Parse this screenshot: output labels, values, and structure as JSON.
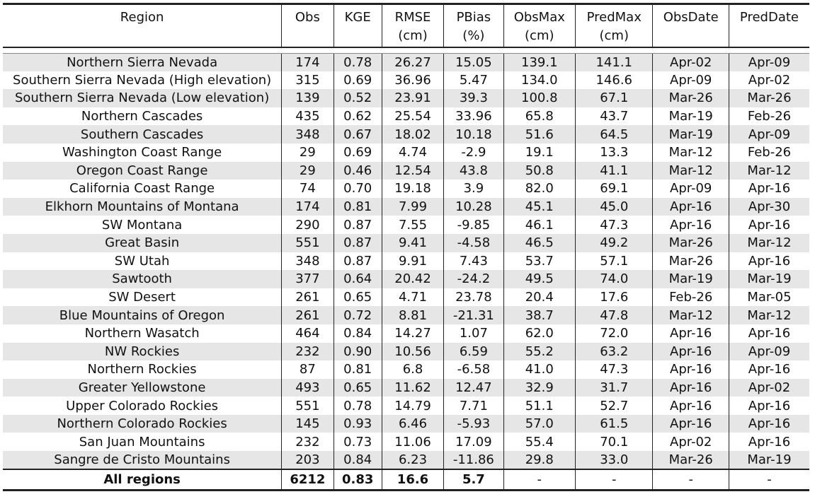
{
  "headers": [
    {
      "line1": "Region",
      "line2": ""
    },
    {
      "line1": "Obs",
      "line2": ""
    },
    {
      "line1": "KGE",
      "line2": ""
    },
    {
      "line1": "RMSE",
      "line2": "(cm)"
    },
    {
      "line1": "PBias",
      "line2": "(%)"
    },
    {
      "line1": "ObsMax",
      "line2": "(cm)"
    },
    {
      "line1": "PredMax",
      "line2": "(cm)"
    },
    {
      "line1": "ObsDate",
      "line2": ""
    },
    {
      "line1": "PredDate",
      "line2": ""
    }
  ],
  "rows": [
    [
      "Northern Sierra Nevada",
      "174",
      "0.78",
      "26.27",
      "15.05",
      "139.1",
      "141.1",
      "Apr-02",
      "Apr-09"
    ],
    [
      "Southern Sierra Nevada (High elevation)",
      "315",
      "0.69",
      "36.96",
      "5.47",
      "134.0",
      "146.6",
      "Apr-09",
      "Apr-02"
    ],
    [
      "Southern Sierra Nevada (Low elevation)",
      "139",
      "0.52",
      "23.91",
      "39.3",
      "100.8",
      "67.1",
      "Mar-26",
      "Mar-26"
    ],
    [
      "Northern Cascades",
      "435",
      "0.62",
      "25.54",
      "33.96",
      "65.8",
      "43.7",
      "Mar-19",
      "Feb-26"
    ],
    [
      "Southern Cascades",
      "348",
      "0.67",
      "18.02",
      "10.18",
      "51.6",
      "64.5",
      "Mar-19",
      "Apr-09"
    ],
    [
      "Washington Coast Range",
      "29",
      "0.69",
      "4.74",
      "-2.9",
      "19.1",
      "13.3",
      "Mar-12",
      "Feb-26"
    ],
    [
      "Oregon Coast Range",
      "29",
      "0.46",
      "12.54",
      "43.8",
      "50.8",
      "41.1",
      "Mar-12",
      "Mar-12"
    ],
    [
      "California Coast Range",
      "74",
      "0.70",
      "19.18",
      "3.9",
      "82.0",
      "69.1",
      "Apr-09",
      "Apr-16"
    ],
    [
      "Elkhorn Mountains of Montana",
      "174",
      "0.81",
      "7.99",
      "10.28",
      "45.1",
      "45.0",
      "Apr-16",
      "Apr-30"
    ],
    [
      "SW Montana",
      "290",
      "0.87",
      "7.55",
      "-9.85",
      "46.1",
      "47.3",
      "Apr-16",
      "Apr-16"
    ],
    [
      "Great Basin",
      "551",
      "0.87",
      "9.41",
      "-4.58",
      "46.5",
      "49.2",
      "Mar-26",
      "Mar-12"
    ],
    [
      "SW Utah",
      "348",
      "0.87",
      "9.91",
      "7.43",
      "53.7",
      "57.1",
      "Mar-26",
      "Apr-16"
    ],
    [
      "Sawtooth",
      "377",
      "0.64",
      "20.42",
      "-24.2",
      "49.5",
      "74.0",
      "Mar-19",
      "Mar-19"
    ],
    [
      "SW Desert",
      "261",
      "0.65",
      "4.71",
      "23.78",
      "20.4",
      "17.6",
      "Feb-26",
      "Mar-05"
    ],
    [
      "Blue Mountains of Oregon",
      "261",
      "0.72",
      "8.81",
      "-21.31",
      "38.7",
      "47.8",
      "Mar-12",
      "Mar-12"
    ],
    [
      "Northern Wasatch",
      "464",
      "0.84",
      "14.27",
      "1.07",
      "62.0",
      "72.0",
      "Apr-16",
      "Apr-16"
    ],
    [
      "NW Rockies",
      "232",
      "0.90",
      "10.56",
      "6.59",
      "55.2",
      "63.2",
      "Apr-16",
      "Apr-09"
    ],
    [
      "Northern Rockies",
      "87",
      "0.81",
      "6.8",
      "-6.58",
      "41.0",
      "47.3",
      "Apr-16",
      "Apr-16"
    ],
    [
      "Greater Yellowstone",
      "493",
      "0.65",
      "11.62",
      "12.47",
      "32.9",
      "31.7",
      "Apr-16",
      "Apr-02"
    ],
    [
      "Upper Colorado Rockies",
      "551",
      "0.78",
      "14.79",
      "7.71",
      "51.1",
      "52.7",
      "Apr-16",
      "Apr-16"
    ],
    [
      "Northern Colorado Rockies",
      "145",
      "0.93",
      "6.46",
      "-5.93",
      "57.0",
      "61.5",
      "Apr-16",
      "Apr-16"
    ],
    [
      "San Juan Mountains",
      "232",
      "0.73",
      "11.06",
      "17.09",
      "55.4",
      "70.1",
      "Apr-02",
      "Apr-16"
    ],
    [
      "Sangre de Cristo Mountains",
      "203",
      "0.84",
      "6.23",
      "-11.86",
      "29.8",
      "33.0",
      "Mar-26",
      "Mar-19"
    ]
  ],
  "total": [
    "All regions",
    "6212",
    "0.83",
    "16.6",
    "5.7",
    "-",
    "-",
    "-",
    "-"
  ],
  "colors": {
    "shade": "#e6e6e6",
    "rule": "#222222"
  }
}
